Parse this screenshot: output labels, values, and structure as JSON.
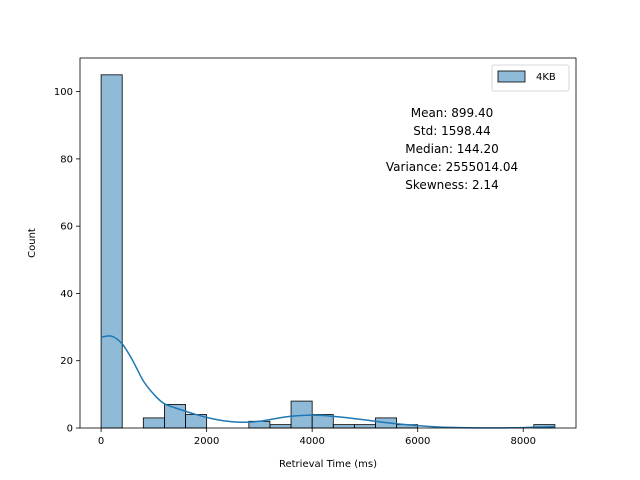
{
  "chart_data": {
    "type": "bar",
    "subtype": "histogram-with-kde",
    "xlabel": "Retrieval Time (ms)",
    "ylabel": "Count",
    "xlim": [
      -400,
      9000
    ],
    "ylim": [
      0,
      110
    ],
    "xticks": [
      0,
      2000,
      4000,
      6000,
      8000
    ],
    "yticks": [
      0,
      20,
      40,
      60,
      80,
      100
    ],
    "legend": {
      "placement": "top-right",
      "entries": [
        "4KB"
      ]
    },
    "color": "#1f77b4",
    "bins": [
      {
        "start": 0,
        "end": 400,
        "count": 105
      },
      {
        "start": 800,
        "end": 1200,
        "count": 3
      },
      {
        "start": 1200,
        "end": 1600,
        "count": 7
      },
      {
        "start": 1600,
        "end": 2000,
        "count": 4
      },
      {
        "start": 2800,
        "end": 3200,
        "count": 2
      },
      {
        "start": 3200,
        "end": 3600,
        "count": 1
      },
      {
        "start": 3600,
        "end": 4000,
        "count": 8
      },
      {
        "start": 4000,
        "end": 4400,
        "count": 4
      },
      {
        "start": 4400,
        "end": 4800,
        "count": 1
      },
      {
        "start": 4800,
        "end": 5200,
        "count": 1
      },
      {
        "start": 5200,
        "end": 5600,
        "count": 3
      },
      {
        "start": 5600,
        "end": 6000,
        "count": 1
      },
      {
        "start": 8200,
        "end": 8600,
        "count": 1
      }
    ],
    "kde": {
      "x": [
        0,
        200,
        400,
        600,
        800,
        1000,
        1200,
        1500,
        1800,
        2100,
        2400,
        2700,
        3000,
        3300,
        3600,
        3900,
        4200,
        4500,
        4800,
        5100,
        5400,
        5700,
        6000,
        6400,
        6800,
        7200,
        7600,
        8000,
        8400,
        8600
      ],
      "y": [
        27,
        27.3,
        25,
        20,
        14,
        10,
        7.2,
        5.5,
        4,
        2.8,
        2,
        1.7,
        2,
        2.8,
        3.5,
        3.8,
        3.7,
        3.3,
        2.8,
        2.2,
        1.6,
        1.1,
        0.7,
        0.3,
        0.1,
        0.05,
        0.05,
        0.1,
        0.3,
        0.4
      ]
    },
    "annotation": [
      "Mean: 899.40",
      "Std: 1598.44",
      "Median: 144.20",
      "Variance: 2555014.04",
      "Skewness: 2.14"
    ]
  }
}
